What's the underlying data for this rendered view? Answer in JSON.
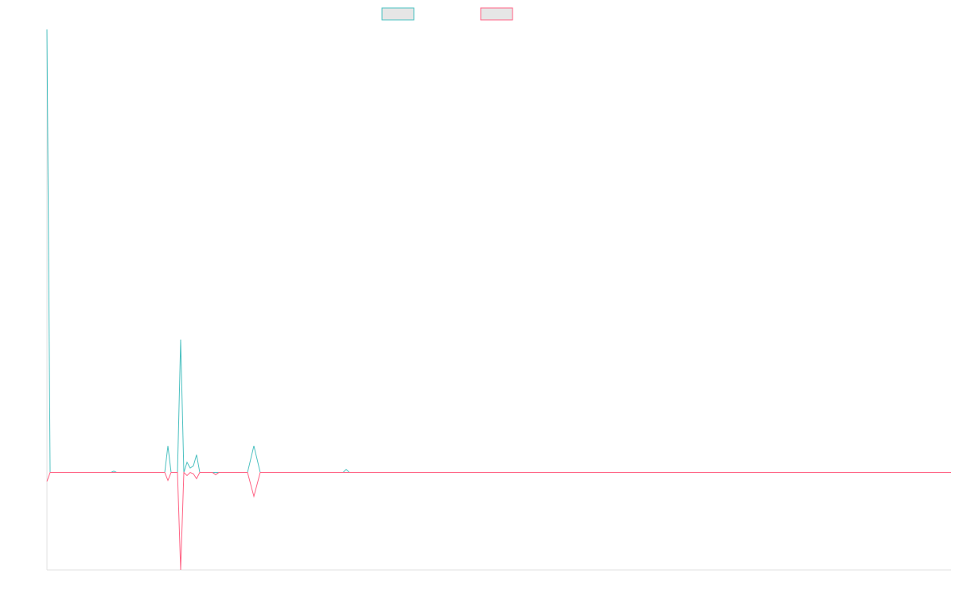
{
  "chart_data": {
    "type": "line",
    "legend": "top",
    "grid": false,
    "xlim": [
      0,
      284
    ],
    "ylim": [
      -22,
      100
    ],
    "series": [
      {
        "color": "#4bc0c0",
        "x": [
          0,
          1,
          20,
          21,
          22,
          37,
          38,
          39,
          41,
          42,
          43,
          44,
          45,
          46,
          47,
          48,
          63,
          65,
          67,
          93,
          94,
          95,
          284
        ],
        "values": [
          100,
          0,
          0,
          0.3,
          0,
          0,
          6,
          0,
          0,
          30,
          0,
          2.3,
          1,
          1.5,
          4,
          0,
          0,
          6,
          0,
          0,
          0.7,
          0,
          0
        ]
      },
      {
        "color": "#ff6384",
        "x": [
          0,
          1,
          37,
          38,
          39,
          41,
          42,
          43,
          44,
          45,
          46,
          47,
          48,
          52,
          53,
          54,
          63,
          65,
          67,
          284
        ],
        "values": [
          -2,
          0,
          0,
          -1.8,
          0,
          0,
          -22,
          0,
          -0.7,
          0,
          -0.3,
          -1.4,
          0,
          0,
          -0.5,
          0,
          0,
          -5.4,
          0,
          0
        ]
      }
    ]
  }
}
